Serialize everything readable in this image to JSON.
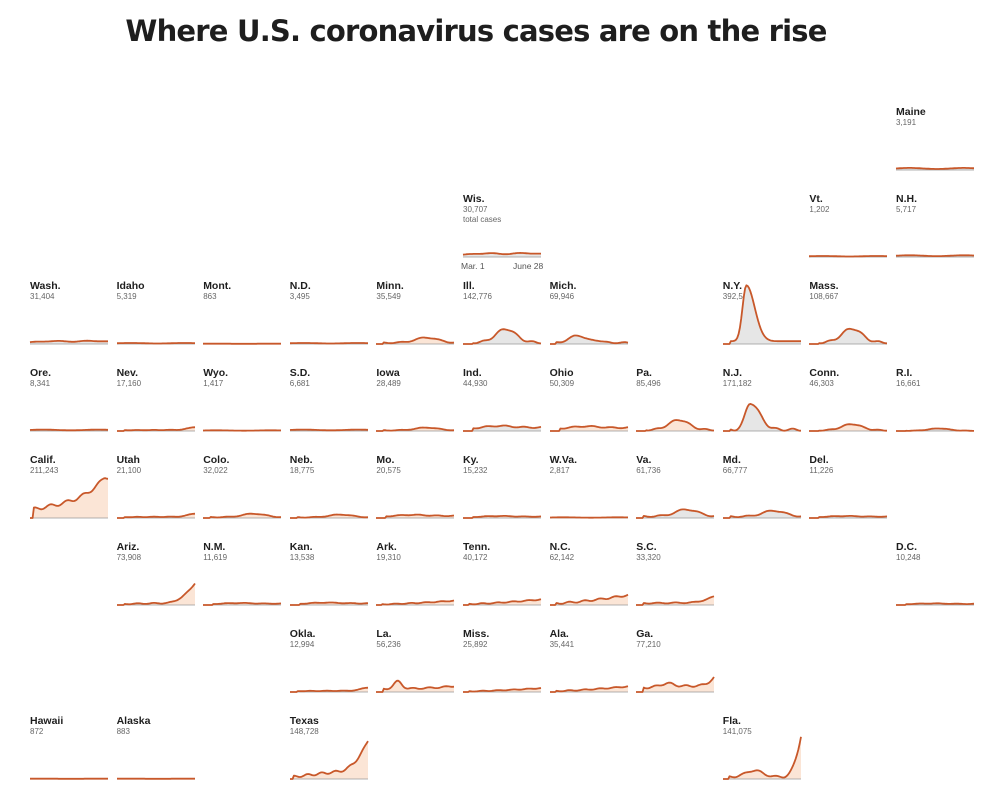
{
  "title": "Where U.S. coronavirus cases are on the rise",
  "chart_data": {
    "type": "area",
    "layout": "tile-grid small multiples",
    "x_axis": {
      "start_label": "Mar. 1",
      "end_label": "June 28"
    },
    "total_label": "total cases",
    "colors": {
      "line": "#c8582a",
      "area_rising": "#fbe5d6",
      "area_other": "#e6e6e6",
      "baseline": "#999999"
    },
    "states": [
      {
        "name": "Maine",
        "total": "3,191",
        "col": 10,
        "row": 0,
        "shape": "flat",
        "level": 0.06,
        "rising": false
      },
      {
        "name": "Wis.",
        "total": "30,707",
        "col": 5,
        "row": 1,
        "shape": "lowbump",
        "level": 0.1,
        "rising": false,
        "note": true
      },
      {
        "name": "Vt.",
        "total": "1,202",
        "col": 9,
        "row": 1,
        "shape": "flat",
        "level": 0.03,
        "rising": false
      },
      {
        "name": "N.H.",
        "total": "5,717",
        "col": 10,
        "row": 1,
        "shape": "flat",
        "level": 0.05,
        "rising": false
      },
      {
        "name": "Wash.",
        "total": "31,404",
        "col": 0,
        "row": 2,
        "shape": "lowbump",
        "level": 0.08,
        "rising": false
      },
      {
        "name": "Idaho",
        "total": "5,319",
        "col": 1,
        "row": 2,
        "shape": "flat",
        "level": 0.03,
        "rising": false
      },
      {
        "name": "Mont.",
        "total": "863",
        "col": 2,
        "row": 2,
        "shape": "flat",
        "level": 0.01,
        "rising": false
      },
      {
        "name": "N.D.",
        "total": "3,495",
        "col": 3,
        "row": 2,
        "shape": "flat",
        "level": 0.03,
        "rising": false
      },
      {
        "name": "Minn.",
        "total": "35,549",
        "col": 4,
        "row": 2,
        "shape": "risefall",
        "level": 0.15,
        "rising": true
      },
      {
        "name": "Ill.",
        "total": "142,776",
        "col": 5,
        "row": 2,
        "shape": "peak",
        "level": 0.35,
        "rising": false
      },
      {
        "name": "Mich.",
        "total": "69,946",
        "col": 6,
        "row": 2,
        "shape": "earlypeak",
        "level": 0.2,
        "rising": false
      },
      {
        "name": "N.Y.",
        "total": "392,539",
        "col": 8,
        "row": 2,
        "shape": "nypeak",
        "level": 1.3,
        "rising": false
      },
      {
        "name": "Mass.",
        "total": "108,667",
        "col": 9,
        "row": 2,
        "shape": "peak",
        "level": 0.36,
        "rising": false
      },
      {
        "name": "Ore.",
        "total": "8,341",
        "col": 0,
        "row": 3,
        "shape": "flat",
        "level": 0.04,
        "rising": true
      },
      {
        "name": "Nev.",
        "total": "17,160",
        "col": 1,
        "row": 3,
        "shape": "latebump",
        "level": 0.07,
        "rising": true
      },
      {
        "name": "Wyo.",
        "total": "1,417",
        "col": 2,
        "row": 3,
        "shape": "flat",
        "level": 0.02,
        "rising": false
      },
      {
        "name": "S.D.",
        "total": "6,681",
        "col": 3,
        "row": 3,
        "shape": "flat",
        "level": 0.04,
        "rising": false
      },
      {
        "name": "Iowa",
        "total": "28,489",
        "col": 4,
        "row": 3,
        "shape": "risefall",
        "level": 0.08,
        "rising": true
      },
      {
        "name": "Ind.",
        "total": "44,930",
        "col": 5,
        "row": 3,
        "shape": "plateau",
        "level": 0.13,
        "rising": false
      },
      {
        "name": "Ohio",
        "total": "50,309",
        "col": 6,
        "row": 3,
        "shape": "plateau",
        "level": 0.12,
        "rising": true
      },
      {
        "name": "Pa.",
        "total": "85,496",
        "col": 7,
        "row": 3,
        "shape": "peak",
        "level": 0.26,
        "rising": true
      },
      {
        "name": "N.J.",
        "total": "171,182",
        "col": 8,
        "row": 3,
        "shape": "njpeak",
        "level": 0.62,
        "rising": false
      },
      {
        "name": "Conn.",
        "total": "46,303",
        "col": 9,
        "row": 3,
        "shape": "peak",
        "level": 0.16,
        "rising": true
      },
      {
        "name": "R.I.",
        "total": "16,661",
        "col": 10,
        "row": 3,
        "shape": "peak",
        "level": 0.06,
        "rising": false
      },
      {
        "name": "Calif.",
        "total": "211,243",
        "col": 0,
        "row": 4,
        "shape": "calif",
        "level": 0.95,
        "rising": true
      },
      {
        "name": "Utah",
        "total": "21,100",
        "col": 1,
        "row": 4,
        "shape": "latebump",
        "level": 0.08,
        "rising": true
      },
      {
        "name": "Colo.",
        "total": "32,022",
        "col": 2,
        "row": 4,
        "shape": "risefall",
        "level": 0.1,
        "rising": true
      },
      {
        "name": "Neb.",
        "total": "18,775",
        "col": 3,
        "row": 4,
        "shape": "risefall",
        "level": 0.08,
        "rising": true
      },
      {
        "name": "Mo.",
        "total": "20,575",
        "col": 4,
        "row": 4,
        "shape": "plateau",
        "level": 0.08,
        "rising": true
      },
      {
        "name": "Ky.",
        "total": "15,232",
        "col": 5,
        "row": 4,
        "shape": "plateau",
        "level": 0.05,
        "rising": true
      },
      {
        "name": "W.Va.",
        "total": "2,817",
        "col": 6,
        "row": 4,
        "shape": "flat",
        "level": 0.02,
        "rising": true
      },
      {
        "name": "Va.",
        "total": "61,736",
        "col": 7,
        "row": 4,
        "shape": "risefall",
        "level": 0.2,
        "rising": false
      },
      {
        "name": "Md.",
        "total": "66,777",
        "col": 8,
        "row": 4,
        "shape": "risefall",
        "level": 0.17,
        "rising": false
      },
      {
        "name": "Del.",
        "total": "11,226",
        "col": 9,
        "row": 4,
        "shape": "plateau",
        "level": 0.05,
        "rising": false
      },
      {
        "name": "Ariz.",
        "total": "73,908",
        "col": 1,
        "row": 5,
        "shape": "ariz",
        "level": 0.5,
        "rising": true
      },
      {
        "name": "N.M.",
        "total": "11,619",
        "col": 2,
        "row": 5,
        "shape": "plateau",
        "level": 0.05,
        "rising": true
      },
      {
        "name": "Kan.",
        "total": "13,538",
        "col": 3,
        "row": 5,
        "shape": "plateau",
        "level": 0.06,
        "rising": true
      },
      {
        "name": "Ark.",
        "total": "19,310",
        "col": 4,
        "row": 5,
        "shape": "rising",
        "level": 0.1,
        "rising": true
      },
      {
        "name": "Tenn.",
        "total": "40,172",
        "col": 5,
        "row": 5,
        "shape": "rising",
        "level": 0.13,
        "rising": true
      },
      {
        "name": "N.C.",
        "total": "62,142",
        "col": 6,
        "row": 5,
        "shape": "rising",
        "level": 0.23,
        "rising": true
      },
      {
        "name": "S.C.",
        "total": "33,320",
        "col": 7,
        "row": 5,
        "shape": "sc",
        "level": 0.2,
        "rising": true
      },
      {
        "name": "D.C.",
        "total": "10,248",
        "col": 10,
        "row": 5,
        "shape": "plateau",
        "level": 0.04,
        "rising": false
      },
      {
        "name": "Okla.",
        "total": "12,994",
        "col": 3,
        "row": 6,
        "shape": "latebump",
        "level": 0.08,
        "rising": true
      },
      {
        "name": "La.",
        "total": "56,236",
        "col": 4,
        "row": 6,
        "shape": "la",
        "level": 0.25,
        "rising": true
      },
      {
        "name": "Miss.",
        "total": "25,892",
        "col": 5,
        "row": 6,
        "shape": "rising",
        "level": 0.09,
        "rising": true
      },
      {
        "name": "Ala.",
        "total": "35,441",
        "col": 6,
        "row": 6,
        "shape": "rising",
        "level": 0.13,
        "rising": true
      },
      {
        "name": "Ga.",
        "total": "77,210",
        "col": 7,
        "row": 6,
        "shape": "ga",
        "level": 0.32,
        "rising": true
      },
      {
        "name": "Hawaii",
        "total": "872",
        "col": 0,
        "row": 7,
        "shape": "flat",
        "level": 0.01,
        "rising": false
      },
      {
        "name": "Alaska",
        "total": "883",
        "col": 1,
        "row": 7,
        "shape": "flat",
        "level": 0.01,
        "rising": false
      },
      {
        "name": "Texas",
        "total": "148,728",
        "col": 3,
        "row": 7,
        "shape": "texas",
        "level": 0.85,
        "rising": true
      },
      {
        "name": "Fla.",
        "total": "141,075",
        "col": 8,
        "row": 7,
        "shape": "fla",
        "level": 1.0,
        "rising": true
      }
    ]
  }
}
